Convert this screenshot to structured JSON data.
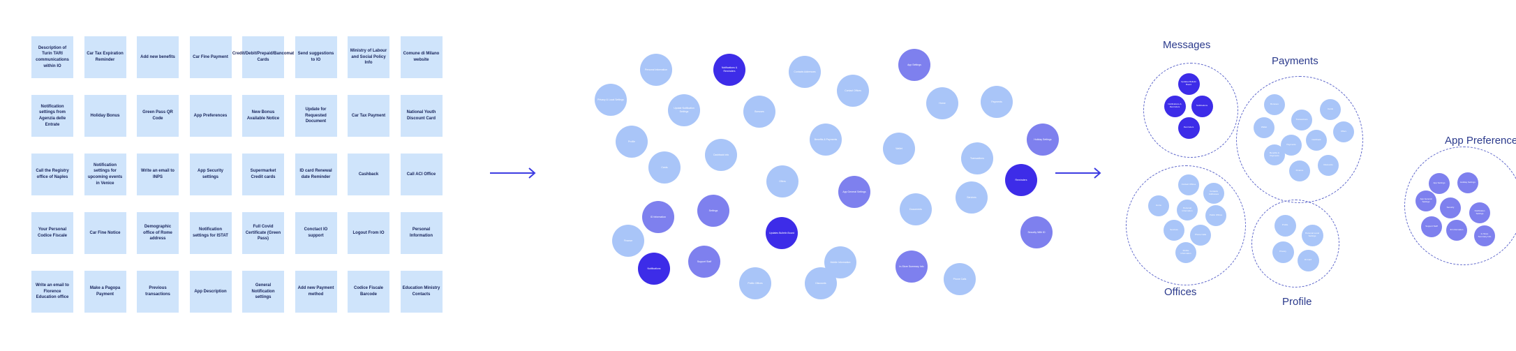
{
  "palette": {
    "light": "#a9c5f8",
    "mid": "#7e80ee",
    "dark": "#3d2ce8",
    "card": "#cfe4fb",
    "arrow": "#3d3ce2",
    "ring": "#5a63c9"
  },
  "cards": [
    [
      "Description of Turin TARI communications within IO",
      "Car Tax Expiration Reminder",
      "Add new benefits",
      "Car Fine Payment",
      "Credit/Debit/Prepaid/Bancomat Cards",
      "Send suggestions to IO",
      "Ministry of Labour and Social Policy Info",
      "Comune di Milano website"
    ],
    [
      "Notification settings from Agenzia delle Entrate",
      "Holiday Bonus",
      "Green Pass QR Code",
      "App Preferences",
      "New Bonus Available Notice",
      "Update for Requested Document",
      "Car Tax Payment",
      "National Youth Discount Card"
    ],
    [
      "Call the Registry office of Naples",
      "Notification settings for upcoming events in Venice",
      "Write an email to INPS",
      "App Security settings",
      "Supermarket Credit cards",
      "ID card Renewal date Reminder",
      "Cashback",
      "Call ACI Office"
    ],
    [
      "Your Personal Codice Fiscale",
      "Car Fine Notice",
      "Demographic office of Rome address",
      "Notification settings for ISTAT",
      "Full Covid Certificate (Green Pass)",
      "Conctact IO support",
      "Logout From IO",
      "Personal Information"
    ],
    [
      "Write an email to Florence Education office",
      "Make a Pagopa Payment",
      "Previous transactions",
      "App Description",
      "General Notification settings",
      "Add new Payment method",
      "Codice Fiscale Barcode",
      "Education Ministry Contacts"
    ]
  ],
  "bubbles": [
    {
      "label": "Personal information",
      "tone": "light"
    },
    {
      "label": "Notifications & Reminders",
      "tone": "dark"
    },
    {
      "label": "Contacts Addresses",
      "tone": "light"
    },
    {
      "label": "App Settings",
      "tone": "mid"
    },
    {
      "label": "Privacy & Local Settings",
      "tone": "light"
    },
    {
      "label": "Update Notification Settings",
      "tone": "light"
    },
    {
      "label": "Bonuses",
      "tone": "light"
    },
    {
      "label": "Contact Offices",
      "tone": "light"
    },
    {
      "label": "Home",
      "tone": "light"
    },
    {
      "label": "Payments",
      "tone": "light"
    },
    {
      "label": "Profile",
      "tone": "light"
    },
    {
      "label": "Benefits & Payments",
      "tone": "light"
    },
    {
      "label": "Wallet",
      "tone": "light"
    },
    {
      "label": "Transactions",
      "tone": "light"
    },
    {
      "label": "Holiday Settings",
      "tone": "mid"
    },
    {
      "label": "Cashback Info",
      "tone": "light"
    },
    {
      "label": "Offers",
      "tone": "light"
    },
    {
      "label": "Cards",
      "tone": "light"
    },
    {
      "label": "App General Settings",
      "tone": "mid"
    },
    {
      "label": "Documents",
      "tone": "light"
    },
    {
      "label": "Services",
      "tone": "light"
    },
    {
      "label": "Reminders",
      "tone": "dark"
    },
    {
      "label": "Security With ID",
      "tone": "mid"
    },
    {
      "label": "ID Information",
      "tone": "mid"
    },
    {
      "label": "Settings",
      "tone": "mid"
    },
    {
      "label": "Updates Bulletin Board",
      "tone": "dark"
    },
    {
      "label": "Finance",
      "tone": "light"
    },
    {
      "label": "Mobile Information",
      "tone": "light"
    },
    {
      "label": "Notifications",
      "tone": "dark"
    },
    {
      "label": "Support Staff",
      "tone": "mid"
    },
    {
      "label": "In-Store Summary Info",
      "tone": "mid"
    },
    {
      "label": "Public Offices",
      "tone": "light"
    },
    {
      "label": "Discounts",
      "tone": "light"
    },
    {
      "label": "Phone Calls",
      "tone": "light"
    }
  ],
  "groups": [
    {
      "title": "Messages",
      "items": [
        {
          "label": "Updates Bulletin Board",
          "tone": "dark"
        },
        {
          "label": "Notifications & Reminders",
          "tone": "dark"
        },
        {
          "label": "Notifications",
          "tone": "dark"
        },
        {
          "label": "Reminders",
          "tone": "dark"
        }
      ]
    },
    {
      "title": "Payments",
      "items": [
        {
          "label": "Bonuses",
          "tone": "light"
        },
        {
          "label": "Transactions",
          "tone": "light"
        },
        {
          "label": "Cards",
          "tone": "light"
        },
        {
          "label": "Wallet",
          "tone": "light"
        },
        {
          "label": "Payments",
          "tone": "light"
        },
        {
          "label": "Cashback",
          "tone": "light"
        },
        {
          "label": "Offers",
          "tone": "light"
        },
        {
          "label": "Benefits & Payments",
          "tone": "light"
        },
        {
          "label": "Finance",
          "tone": "light"
        },
        {
          "label": "Discounts",
          "tone": "light"
        }
      ]
    },
    {
      "title": "App Preferences",
      "items": [
        {
          "label": "App Settings",
          "tone": "mid"
        },
        {
          "label": "Holiday Settings",
          "tone": "mid"
        },
        {
          "label": "App General Settings",
          "tone": "mid"
        },
        {
          "label": "Security",
          "tone": "mid"
        },
        {
          "label": "Notification Settings",
          "tone": "mid"
        },
        {
          "label": "Support Staff",
          "tone": "mid"
        },
        {
          "label": "ID Information",
          "tone": "mid"
        },
        {
          "label": "In-Store Summary Info",
          "tone": "mid"
        }
      ]
    },
    {
      "title": "Offices",
      "items": [
        {
          "label": "Contact Offices",
          "tone": "light"
        },
        {
          "label": "Contacts Addresses",
          "tone": "light"
        },
        {
          "label": "Home",
          "tone": "light"
        },
        {
          "label": "Personal Information",
          "tone": "light"
        },
        {
          "label": "Public Offices",
          "tone": "light"
        },
        {
          "label": "Services",
          "tone": "light"
        },
        {
          "label": "Phone Calls",
          "tone": "light"
        },
        {
          "label": "Mobile Information",
          "tone": "light"
        },
        {
          "label": "Documents",
          "tone": "light"
        }
      ]
    },
    {
      "title": "Profile",
      "items": [
        {
          "label": "Profile",
          "tone": "light"
        },
        {
          "label": "Personal Local Settings",
          "tone": "light"
        },
        {
          "label": "Privacy",
          "tone": "light"
        },
        {
          "label": "ID Card",
          "tone": "light"
        }
      ]
    }
  ]
}
